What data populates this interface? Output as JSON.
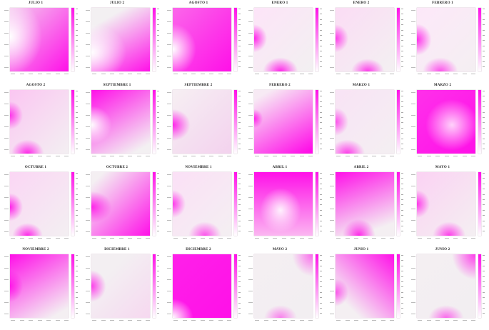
{
  "chart_data": [
    {
      "type": "heatmap",
      "title": "JULIO 1",
      "colormap": [
        "#ffffff",
        "#ff10e8"
      ],
      "field": "white low-intensity zone near left edge; intensity rises toward bottom-right"
    },
    {
      "type": "heatmap",
      "title": "JULIO 2",
      "colormap": [
        "#ffffff",
        "#ff10e8"
      ],
      "field": "white diagonal band from left edge; magenta toward bottom-right"
    },
    {
      "type": "heatmap",
      "title": "AGOSTO 1",
      "colormap": [
        "#ffffff",
        "#ff10e8"
      ],
      "field": "predominantly magenta with small white zone at left edge"
    },
    {
      "type": "heatmap",
      "title": "ENERO 1",
      "colormap": [
        "#ffffff",
        "#ff10e8"
      ],
      "field": "mostly white-pink; magenta hotspots at left and bottom"
    },
    {
      "type": "heatmap",
      "title": "ENERO 2",
      "colormap": [
        "#ffffff",
        "#ff10e8"
      ],
      "field": "mostly light; magenta hotspots at left and bottom"
    },
    {
      "type": "heatmap",
      "title": "FEBRERO 1",
      "colormap": [
        "#ffffff",
        "#ff10e8"
      ],
      "field": "light field with magenta hotspots at left and bottom"
    },
    {
      "type": "heatmap",
      "title": "AGOSTO 2",
      "colormap": [
        "#ffffff",
        "#ff10e8"
      ],
      "field": "light field with magenta hotspots at left and bottom"
    },
    {
      "type": "heatmap",
      "title": "SEPTIEMBRE 1",
      "colormap": [
        "#ffffff",
        "#ff10e8"
      ],
      "field": "magenta upper-left, white toward lower-right"
    },
    {
      "type": "heatmap",
      "title": "SEPTIEMBRE 2",
      "colormap": [
        "#ffffff",
        "#ff10e8"
      ],
      "field": "light field with magenta hotspot at left"
    },
    {
      "type": "heatmap",
      "title": "FEBRERO 2",
      "colormap": [
        "#ffffff",
        "#ff10e8"
      ],
      "field": "magenta diagonal band with white upper-right"
    },
    {
      "type": "heatmap",
      "title": "MARZO 1",
      "colormap": [
        "#ffffff",
        "#ff10e8"
      ],
      "field": "light field with magenta hotspots at left and bottom"
    },
    {
      "type": "heatmap",
      "title": "MARZO 2",
      "colormap": [
        "#ffffff",
        "#ff10e8"
      ],
      "field": "predominantly magenta with lighter region in the middle"
    },
    {
      "type": "heatmap",
      "title": "OCTUBRE 1",
      "colormap": [
        "#ffffff",
        "#ff10e8"
      ],
      "field": "light field with magenta hotspots at left and bottom"
    },
    {
      "type": "heatmap",
      "title": "OCTUBRE 2",
      "colormap": [
        "#ffffff",
        "#ff10e8"
      ],
      "field": "white upper-left; magenta toward bottom-right"
    },
    {
      "type": "heatmap",
      "title": "NOVIEMBRE 1",
      "colormap": [
        "#ffffff",
        "#ff10e8"
      ],
      "field": "light field with magenta hotspots at left and bottom"
    },
    {
      "type": "heatmap",
      "title": "ABRIL 1",
      "colormap": [
        "#ffffff",
        "#ff10e8"
      ],
      "field": "magenta top and left; light center"
    },
    {
      "type": "heatmap",
      "title": "ABRIL 2",
      "colormap": [
        "#ffffff",
        "#ff10e8"
      ],
      "field": "magenta upper area; light lower-right"
    },
    {
      "type": "heatmap",
      "title": "MAYO 1",
      "colormap": [
        "#ffffff",
        "#ff10e8"
      ],
      "field": "light field with magenta hotspots at left and bottom"
    },
    {
      "type": "heatmap",
      "title": "NOVIEMBRE 2",
      "colormap": [
        "#ffffff",
        "#ff10e8"
      ],
      "field": "magenta upper-left; light lower-right"
    },
    {
      "type": "heatmap",
      "title": "DICIEMBRE 1",
      "colormap": [
        "#ffffff",
        "#ff10e8"
      ],
      "field": "light field with magenta hotspot at left"
    },
    {
      "type": "heatmap",
      "title": "DICIEMBRE 2",
      "colormap": [
        "#ffffff",
        "#ff10e8"
      ],
      "field": "predominantly magenta with white zone at lower-left"
    },
    {
      "type": "heatmap",
      "title": "MAYO 2",
      "colormap": [
        "#ffffff",
        "#ff10e8"
      ],
      "field": "mostly white with faint magenta at top-right and bottom"
    },
    {
      "type": "heatmap",
      "title": "JUNIO 1",
      "colormap": [
        "#ffffff",
        "#ff10e8"
      ],
      "field": "magenta top-right; light toward bottom-left"
    },
    {
      "type": "heatmap",
      "title": "JUNIO 2",
      "colormap": [
        "#ffffff",
        "#ff10e8"
      ],
      "field": "mostly white with magenta at top-right and bottom"
    }
  ]
}
